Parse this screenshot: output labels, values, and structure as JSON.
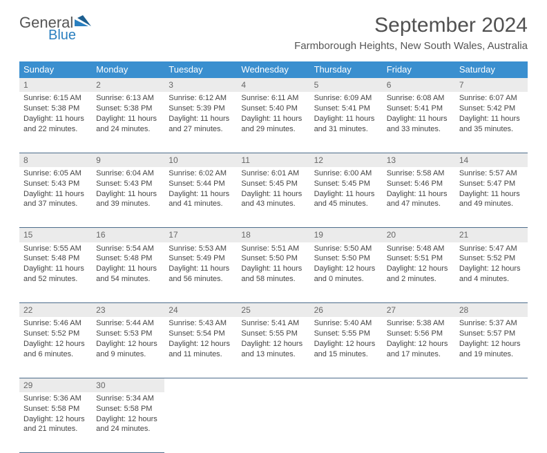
{
  "logo": {
    "part1": "General",
    "part2": "Blue"
  },
  "title": "September 2024",
  "location": "Farmborough Heights, New South Wales, Australia",
  "colors": {
    "header_bg": "#3a8fcf",
    "header_fg": "#ffffff",
    "daynum_bg": "#ebebeb",
    "rule": "#4a6a8a",
    "logo_blue": "#2a7fbf"
  },
  "columns": [
    "Sunday",
    "Monday",
    "Tuesday",
    "Wednesday",
    "Thursday",
    "Friday",
    "Saturday"
  ],
  "weeks": [
    [
      {
        "n": "1",
        "sr": "Sunrise: 6:15 AM",
        "ss": "Sunset: 5:38 PM",
        "d1": "Daylight: 11 hours",
        "d2": "and 22 minutes."
      },
      {
        "n": "2",
        "sr": "Sunrise: 6:13 AM",
        "ss": "Sunset: 5:38 PM",
        "d1": "Daylight: 11 hours",
        "d2": "and 24 minutes."
      },
      {
        "n": "3",
        "sr": "Sunrise: 6:12 AM",
        "ss": "Sunset: 5:39 PM",
        "d1": "Daylight: 11 hours",
        "d2": "and 27 minutes."
      },
      {
        "n": "4",
        "sr": "Sunrise: 6:11 AM",
        "ss": "Sunset: 5:40 PM",
        "d1": "Daylight: 11 hours",
        "d2": "and 29 minutes."
      },
      {
        "n": "5",
        "sr": "Sunrise: 6:09 AM",
        "ss": "Sunset: 5:41 PM",
        "d1": "Daylight: 11 hours",
        "d2": "and 31 minutes."
      },
      {
        "n": "6",
        "sr": "Sunrise: 6:08 AM",
        "ss": "Sunset: 5:41 PM",
        "d1": "Daylight: 11 hours",
        "d2": "and 33 minutes."
      },
      {
        "n": "7",
        "sr": "Sunrise: 6:07 AM",
        "ss": "Sunset: 5:42 PM",
        "d1": "Daylight: 11 hours",
        "d2": "and 35 minutes."
      }
    ],
    [
      {
        "n": "8",
        "sr": "Sunrise: 6:05 AM",
        "ss": "Sunset: 5:43 PM",
        "d1": "Daylight: 11 hours",
        "d2": "and 37 minutes."
      },
      {
        "n": "9",
        "sr": "Sunrise: 6:04 AM",
        "ss": "Sunset: 5:43 PM",
        "d1": "Daylight: 11 hours",
        "d2": "and 39 minutes."
      },
      {
        "n": "10",
        "sr": "Sunrise: 6:02 AM",
        "ss": "Sunset: 5:44 PM",
        "d1": "Daylight: 11 hours",
        "d2": "and 41 minutes."
      },
      {
        "n": "11",
        "sr": "Sunrise: 6:01 AM",
        "ss": "Sunset: 5:45 PM",
        "d1": "Daylight: 11 hours",
        "d2": "and 43 minutes."
      },
      {
        "n": "12",
        "sr": "Sunrise: 6:00 AM",
        "ss": "Sunset: 5:45 PM",
        "d1": "Daylight: 11 hours",
        "d2": "and 45 minutes."
      },
      {
        "n": "13",
        "sr": "Sunrise: 5:58 AM",
        "ss": "Sunset: 5:46 PM",
        "d1": "Daylight: 11 hours",
        "d2": "and 47 minutes."
      },
      {
        "n": "14",
        "sr": "Sunrise: 5:57 AM",
        "ss": "Sunset: 5:47 PM",
        "d1": "Daylight: 11 hours",
        "d2": "and 49 minutes."
      }
    ],
    [
      {
        "n": "15",
        "sr": "Sunrise: 5:55 AM",
        "ss": "Sunset: 5:48 PM",
        "d1": "Daylight: 11 hours",
        "d2": "and 52 minutes."
      },
      {
        "n": "16",
        "sr": "Sunrise: 5:54 AM",
        "ss": "Sunset: 5:48 PM",
        "d1": "Daylight: 11 hours",
        "d2": "and 54 minutes."
      },
      {
        "n": "17",
        "sr": "Sunrise: 5:53 AM",
        "ss": "Sunset: 5:49 PM",
        "d1": "Daylight: 11 hours",
        "d2": "and 56 minutes."
      },
      {
        "n": "18",
        "sr": "Sunrise: 5:51 AM",
        "ss": "Sunset: 5:50 PM",
        "d1": "Daylight: 11 hours",
        "d2": "and 58 minutes."
      },
      {
        "n": "19",
        "sr": "Sunrise: 5:50 AM",
        "ss": "Sunset: 5:50 PM",
        "d1": "Daylight: 12 hours",
        "d2": "and 0 minutes."
      },
      {
        "n": "20",
        "sr": "Sunrise: 5:48 AM",
        "ss": "Sunset: 5:51 PM",
        "d1": "Daylight: 12 hours",
        "d2": "and 2 minutes."
      },
      {
        "n": "21",
        "sr": "Sunrise: 5:47 AM",
        "ss": "Sunset: 5:52 PM",
        "d1": "Daylight: 12 hours",
        "d2": "and 4 minutes."
      }
    ],
    [
      {
        "n": "22",
        "sr": "Sunrise: 5:46 AM",
        "ss": "Sunset: 5:52 PM",
        "d1": "Daylight: 12 hours",
        "d2": "and 6 minutes."
      },
      {
        "n": "23",
        "sr": "Sunrise: 5:44 AM",
        "ss": "Sunset: 5:53 PM",
        "d1": "Daylight: 12 hours",
        "d2": "and 9 minutes."
      },
      {
        "n": "24",
        "sr": "Sunrise: 5:43 AM",
        "ss": "Sunset: 5:54 PM",
        "d1": "Daylight: 12 hours",
        "d2": "and 11 minutes."
      },
      {
        "n": "25",
        "sr": "Sunrise: 5:41 AM",
        "ss": "Sunset: 5:55 PM",
        "d1": "Daylight: 12 hours",
        "d2": "and 13 minutes."
      },
      {
        "n": "26",
        "sr": "Sunrise: 5:40 AM",
        "ss": "Sunset: 5:55 PM",
        "d1": "Daylight: 12 hours",
        "d2": "and 15 minutes."
      },
      {
        "n": "27",
        "sr": "Sunrise: 5:38 AM",
        "ss": "Sunset: 5:56 PM",
        "d1": "Daylight: 12 hours",
        "d2": "and 17 minutes."
      },
      {
        "n": "28",
        "sr": "Sunrise: 5:37 AM",
        "ss": "Sunset: 5:57 PM",
        "d1": "Daylight: 12 hours",
        "d2": "and 19 minutes."
      }
    ],
    [
      {
        "n": "29",
        "sr": "Sunrise: 5:36 AM",
        "ss": "Sunset: 5:58 PM",
        "d1": "Daylight: 12 hours",
        "d2": "and 21 minutes."
      },
      {
        "n": "30",
        "sr": "Sunrise: 5:34 AM",
        "ss": "Sunset: 5:58 PM",
        "d1": "Daylight: 12 hours",
        "d2": "and 24 minutes."
      },
      null,
      null,
      null,
      null,
      null
    ]
  ]
}
